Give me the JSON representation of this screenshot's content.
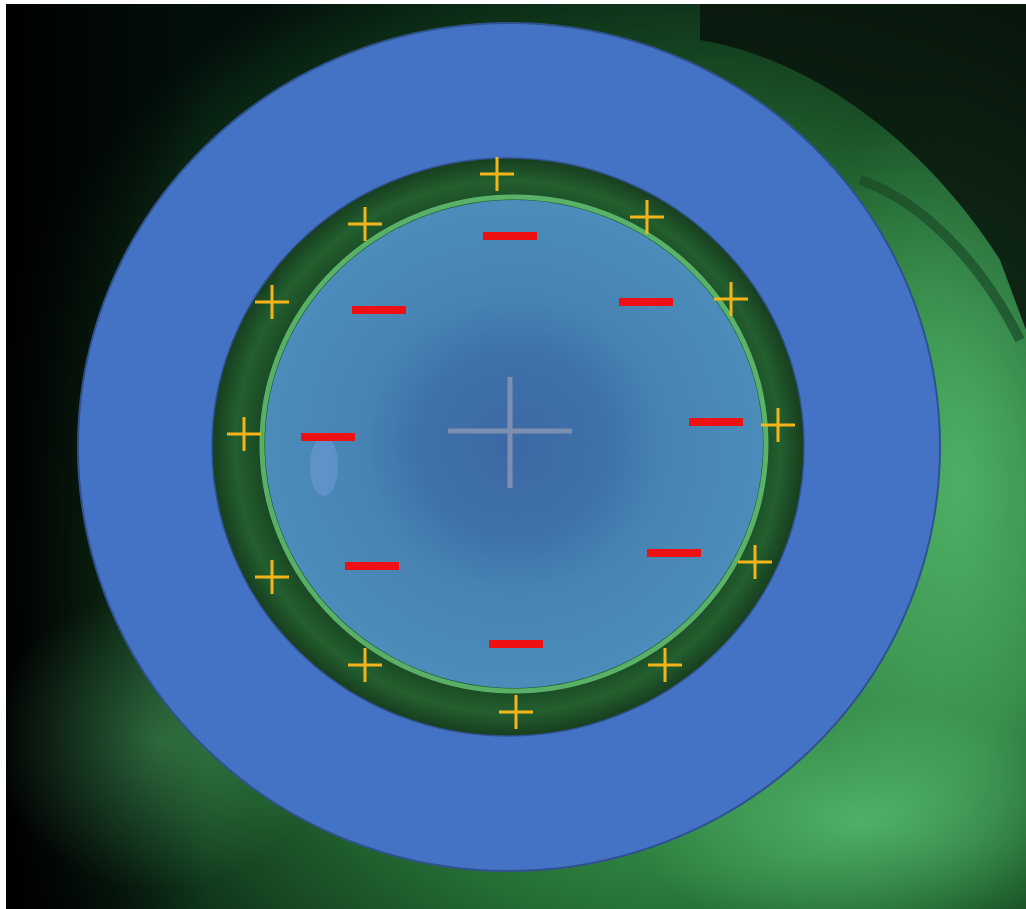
{
  "colors": {
    "background_dark": "#020a04",
    "tissue_green": "#2e8a43",
    "tissue_glow": "#5fd67f",
    "outer_ring": "#4472c4",
    "outer_ring_stroke": "#2f528f",
    "tear_ring": "#1d4a26",
    "tear_ring_highlight": "#6ed37e",
    "optic_zone": "#4a88b6",
    "optic_center": "#3c6aa6",
    "plus_sign": "#f5b51a",
    "minus_sign": "#ee1111",
    "center_crosshair": "#7d8fae"
  },
  "icons": {
    "plus": "plus-icon",
    "minus": "minus-icon",
    "crosshair": "crosshair-icon"
  },
  "diagram": {
    "plus_marker_count": 12,
    "minus_marker_count": 8
  }
}
